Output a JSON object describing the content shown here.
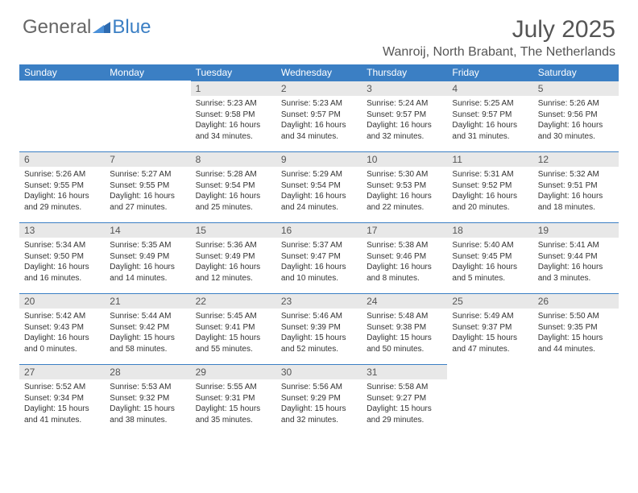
{
  "brand": {
    "part1": "General",
    "part2": "Blue"
  },
  "title": "July 2025",
  "location": "Wanroij, North Brabant, The Netherlands",
  "colors": {
    "header_bg": "#3b7fc4",
    "header_text": "#ffffff",
    "daynum_bg": "#e8e8e8",
    "daynum_border": "#3b7fc4",
    "body_bg": "#ffffff",
    "text": "#333333",
    "title_text": "#555555"
  },
  "typography": {
    "title_fontsize": 30,
    "location_fontsize": 16,
    "dayheader_fontsize": 12,
    "daynum_fontsize": 12,
    "body_fontsize": 10
  },
  "dayHeaders": [
    "Sunday",
    "Monday",
    "Tuesday",
    "Wednesday",
    "Thursday",
    "Friday",
    "Saturday"
  ],
  "weeks": [
    [
      null,
      null,
      {
        "n": "1",
        "sr": "Sunrise: 5:23 AM",
        "ss": "Sunset: 9:58 PM",
        "dl": "Daylight: 16 hours and 34 minutes."
      },
      {
        "n": "2",
        "sr": "Sunrise: 5:23 AM",
        "ss": "Sunset: 9:57 PM",
        "dl": "Daylight: 16 hours and 34 minutes."
      },
      {
        "n": "3",
        "sr": "Sunrise: 5:24 AM",
        "ss": "Sunset: 9:57 PM",
        "dl": "Daylight: 16 hours and 32 minutes."
      },
      {
        "n": "4",
        "sr": "Sunrise: 5:25 AM",
        "ss": "Sunset: 9:57 PM",
        "dl": "Daylight: 16 hours and 31 minutes."
      },
      {
        "n": "5",
        "sr": "Sunrise: 5:26 AM",
        "ss": "Sunset: 9:56 PM",
        "dl": "Daylight: 16 hours and 30 minutes."
      }
    ],
    [
      {
        "n": "6",
        "sr": "Sunrise: 5:26 AM",
        "ss": "Sunset: 9:55 PM",
        "dl": "Daylight: 16 hours and 29 minutes."
      },
      {
        "n": "7",
        "sr": "Sunrise: 5:27 AM",
        "ss": "Sunset: 9:55 PM",
        "dl": "Daylight: 16 hours and 27 minutes."
      },
      {
        "n": "8",
        "sr": "Sunrise: 5:28 AM",
        "ss": "Sunset: 9:54 PM",
        "dl": "Daylight: 16 hours and 25 minutes."
      },
      {
        "n": "9",
        "sr": "Sunrise: 5:29 AM",
        "ss": "Sunset: 9:54 PM",
        "dl": "Daylight: 16 hours and 24 minutes."
      },
      {
        "n": "10",
        "sr": "Sunrise: 5:30 AM",
        "ss": "Sunset: 9:53 PM",
        "dl": "Daylight: 16 hours and 22 minutes."
      },
      {
        "n": "11",
        "sr": "Sunrise: 5:31 AM",
        "ss": "Sunset: 9:52 PM",
        "dl": "Daylight: 16 hours and 20 minutes."
      },
      {
        "n": "12",
        "sr": "Sunrise: 5:32 AM",
        "ss": "Sunset: 9:51 PM",
        "dl": "Daylight: 16 hours and 18 minutes."
      }
    ],
    [
      {
        "n": "13",
        "sr": "Sunrise: 5:34 AM",
        "ss": "Sunset: 9:50 PM",
        "dl": "Daylight: 16 hours and 16 minutes."
      },
      {
        "n": "14",
        "sr": "Sunrise: 5:35 AM",
        "ss": "Sunset: 9:49 PM",
        "dl": "Daylight: 16 hours and 14 minutes."
      },
      {
        "n": "15",
        "sr": "Sunrise: 5:36 AM",
        "ss": "Sunset: 9:49 PM",
        "dl": "Daylight: 16 hours and 12 minutes."
      },
      {
        "n": "16",
        "sr": "Sunrise: 5:37 AM",
        "ss": "Sunset: 9:47 PM",
        "dl": "Daylight: 16 hours and 10 minutes."
      },
      {
        "n": "17",
        "sr": "Sunrise: 5:38 AM",
        "ss": "Sunset: 9:46 PM",
        "dl": "Daylight: 16 hours and 8 minutes."
      },
      {
        "n": "18",
        "sr": "Sunrise: 5:40 AM",
        "ss": "Sunset: 9:45 PM",
        "dl": "Daylight: 16 hours and 5 minutes."
      },
      {
        "n": "19",
        "sr": "Sunrise: 5:41 AM",
        "ss": "Sunset: 9:44 PM",
        "dl": "Daylight: 16 hours and 3 minutes."
      }
    ],
    [
      {
        "n": "20",
        "sr": "Sunrise: 5:42 AM",
        "ss": "Sunset: 9:43 PM",
        "dl": "Daylight: 16 hours and 0 minutes."
      },
      {
        "n": "21",
        "sr": "Sunrise: 5:44 AM",
        "ss": "Sunset: 9:42 PM",
        "dl": "Daylight: 15 hours and 58 minutes."
      },
      {
        "n": "22",
        "sr": "Sunrise: 5:45 AM",
        "ss": "Sunset: 9:41 PM",
        "dl": "Daylight: 15 hours and 55 minutes."
      },
      {
        "n": "23",
        "sr": "Sunrise: 5:46 AM",
        "ss": "Sunset: 9:39 PM",
        "dl": "Daylight: 15 hours and 52 minutes."
      },
      {
        "n": "24",
        "sr": "Sunrise: 5:48 AM",
        "ss": "Sunset: 9:38 PM",
        "dl": "Daylight: 15 hours and 50 minutes."
      },
      {
        "n": "25",
        "sr": "Sunrise: 5:49 AM",
        "ss": "Sunset: 9:37 PM",
        "dl": "Daylight: 15 hours and 47 minutes."
      },
      {
        "n": "26",
        "sr": "Sunrise: 5:50 AM",
        "ss": "Sunset: 9:35 PM",
        "dl": "Daylight: 15 hours and 44 minutes."
      }
    ],
    [
      {
        "n": "27",
        "sr": "Sunrise: 5:52 AM",
        "ss": "Sunset: 9:34 PM",
        "dl": "Daylight: 15 hours and 41 minutes."
      },
      {
        "n": "28",
        "sr": "Sunrise: 5:53 AM",
        "ss": "Sunset: 9:32 PM",
        "dl": "Daylight: 15 hours and 38 minutes."
      },
      {
        "n": "29",
        "sr": "Sunrise: 5:55 AM",
        "ss": "Sunset: 9:31 PM",
        "dl": "Daylight: 15 hours and 35 minutes."
      },
      {
        "n": "30",
        "sr": "Sunrise: 5:56 AM",
        "ss": "Sunset: 9:29 PM",
        "dl": "Daylight: 15 hours and 32 minutes."
      },
      {
        "n": "31",
        "sr": "Sunrise: 5:58 AM",
        "ss": "Sunset: 9:27 PM",
        "dl": "Daylight: 15 hours and 29 minutes."
      },
      null,
      null
    ]
  ]
}
